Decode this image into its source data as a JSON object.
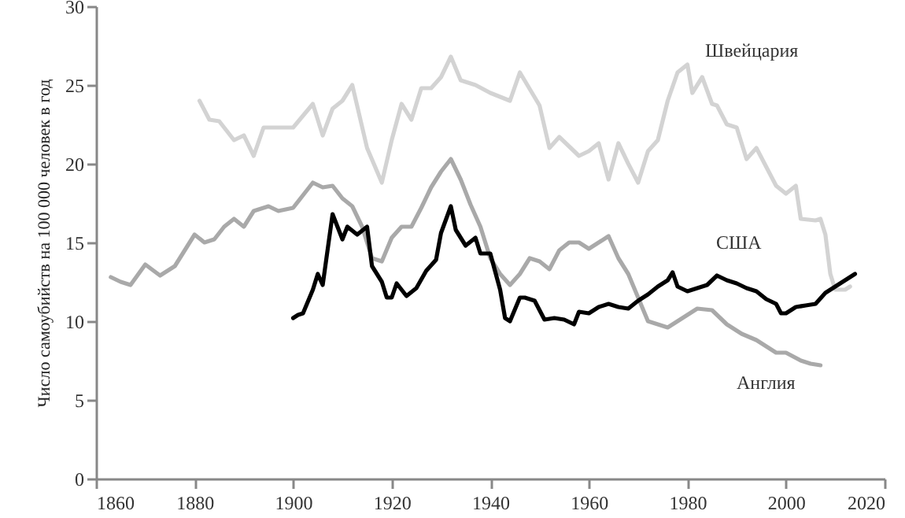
{
  "chart_data": {
    "type": "line",
    "ylabel": "Число самоубийств на 100 000 человек в год",
    "xlim": [
      1860,
      2020
    ],
    "xticks": [
      1860,
      1880,
      1900,
      1920,
      1940,
      1960,
      1980,
      2000,
      2020
    ],
    "ylim": [
      0,
      30
    ],
    "yticks": [
      0,
      5,
      10,
      15,
      20,
      25,
      30
    ],
    "grid": false,
    "marker": "none",
    "line_style": "solid",
    "series": [
      {
        "name": "Швейцария",
        "color": "#d3d3d3",
        "x": [
          1881,
          1883,
          1885,
          1888,
          1890,
          1892,
          1894,
          1900,
          1904,
          1906,
          1908,
          1910,
          1912,
          1915,
          1918,
          1920,
          1922,
          1924,
          1926,
          1928,
          1930,
          1932,
          1934,
          1937,
          1940,
          1944,
          1946,
          1950,
          1952,
          1954,
          1958,
          1960,
          1962,
          1964,
          1966,
          1968,
          1970,
          1972,
          1974,
          1976,
          1978,
          1980,
          1981,
          1983,
          1985,
          1986,
          1988,
          1990,
          1992,
          1994,
          1996,
          1998,
          2000,
          2002,
          2003,
          2006,
          2007,
          2008,
          2009,
          2010,
          2012,
          2013
        ],
        "values": [
          24,
          22.8,
          22.7,
          21.5,
          21.8,
          20.5,
          22.3,
          22.3,
          23.8,
          21.8,
          23.5,
          24,
          25,
          21,
          18.8,
          21.5,
          23.8,
          22.8,
          24.8,
          24.8,
          25.5,
          26.8,
          25.3,
          25,
          24.5,
          24,
          25.8,
          23.7,
          21,
          21.7,
          20.5,
          20.8,
          21.3,
          19,
          21.3,
          20,
          18.8,
          20.8,
          21.5,
          24,
          25.8,
          26.3,
          24.5,
          25.5,
          23.8,
          23.7,
          22.5,
          22.3,
          20.3,
          21,
          19.8,
          18.6,
          18.1,
          18.6,
          16.5,
          16.4,
          16.5,
          15.5,
          13,
          12,
          12,
          12.2
        ]
      },
      {
        "name": "Англия",
        "color": "#a9a9a9",
        "x": [
          1863,
          1865,
          1867,
          1870,
          1873,
          1876,
          1878,
          1880,
          1882,
          1884,
          1886,
          1888,
          1890,
          1892,
          1895,
          1897,
          1900,
          1902,
          1904,
          1906,
          1908,
          1910,
          1912,
          1914,
          1916,
          1918,
          1920,
          1922,
          1924,
          1926,
          1928,
          1930,
          1932,
          1934,
          1936,
          1938,
          1940,
          1942,
          1944,
          1946,
          1948,
          1950,
          1952,
          1954,
          1956,
          1958,
          1960,
          1962,
          1964,
          1966,
          1968,
          1970,
          1972,
          1976,
          1978,
          1982,
          1985,
          1988,
          1991,
          1994,
          1998,
          2000,
          2003,
          2005,
          2007
        ],
        "values": [
          12.8,
          12.5,
          12.3,
          13.6,
          12.9,
          13.5,
          14.5,
          15.5,
          15,
          15.2,
          16,
          16.5,
          16,
          17,
          17.3,
          17,
          17.2,
          18,
          18.8,
          18.5,
          18.6,
          17.8,
          17.3,
          16,
          14,
          13.8,
          15.3,
          16,
          16,
          17.2,
          18.5,
          19.5,
          20.3,
          19,
          17.4,
          16,
          14,
          13,
          12.3,
          13,
          14,
          13.8,
          13.3,
          14.5,
          15,
          15,
          14.6,
          15,
          15.4,
          14,
          13,
          11.5,
          10,
          9.6,
          10,
          10.8,
          10.7,
          9.8,
          9.2,
          8.8,
          8,
          8,
          7.5,
          7.3,
          7.2
        ]
      },
      {
        "name": "США",
        "color": "#000000",
        "x": [
          1900,
          1901,
          1902,
          1904,
          1905,
          1906,
          1908,
          1909,
          1910,
          1911,
          1913,
          1915,
          1916,
          1918,
          1919,
          1920,
          1921,
          1923,
          1925,
          1927,
          1929,
          1930,
          1932,
          1933,
          1935,
          1937,
          1938,
          1940,
          1942,
          1943,
          1944,
          1946,
          1947,
          1949,
          1951,
          1953,
          1955,
          1957,
          1958,
          1960,
          1962,
          1964,
          1966,
          1968,
          1970,
          1972,
          1974,
          1976,
          1977,
          1978,
          1980,
          1982,
          1984,
          1986,
          1988,
          1990,
          1992,
          1994,
          1996,
          1998,
          1999,
          2000,
          2002,
          2004,
          2006,
          2008,
          2010,
          2014
        ],
        "values": [
          10.2,
          10.4,
          10.5,
          12,
          13,
          12.3,
          16.8,
          16,
          15.2,
          16,
          15.5,
          16,
          13.5,
          12.5,
          11.5,
          11.5,
          12.4,
          11.6,
          12.1,
          13.2,
          13.9,
          15.6,
          17.3,
          15.8,
          14.8,
          15.3,
          14.3,
          14.3,
          12,
          10.2,
          10,
          11.5,
          11.5,
          11.3,
          10.1,
          10.2,
          10.1,
          9.8,
          10.6,
          10.5,
          10.9,
          11.1,
          10.9,
          10.8,
          11.3,
          11.7,
          12.2,
          12.6,
          13.1,
          12.2,
          11.9,
          12.1,
          12.3,
          12.9,
          12.6,
          12.4,
          12.1,
          11.9,
          11.4,
          11.1,
          10.5,
          10.5,
          10.9,
          11,
          11.1,
          11.8,
          12.2,
          13
        ]
      }
    ]
  }
}
